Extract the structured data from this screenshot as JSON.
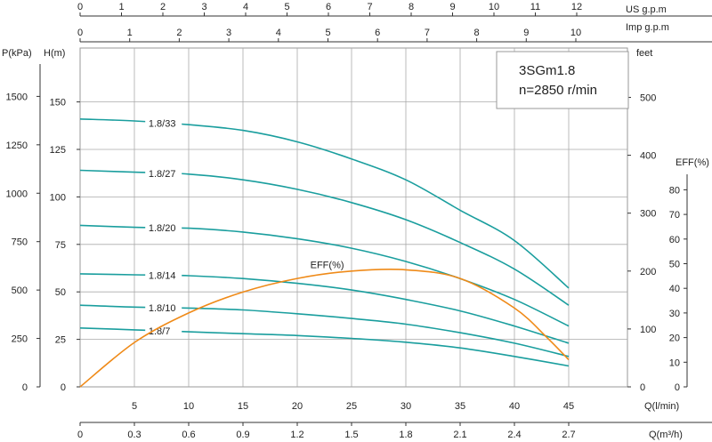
{
  "chart_data": {
    "type": "line",
    "title": "3SGm1.8",
    "subtitle": "n=2850 r/min",
    "axes": {
      "q_lmin": {
        "label": "Q(l/min)",
        "ticks": [
          5,
          10,
          15,
          20,
          25,
          30,
          35,
          40,
          45
        ],
        "range": [
          0,
          50
        ]
      },
      "q_m3h": {
        "label": "Q(m³/h)",
        "ticks": [
          "0",
          "0.3",
          "0.6",
          "0.9",
          "1.2",
          "1.5",
          "1.8",
          "2.1",
          "2.4",
          "2.7"
        ],
        "range": [
          0,
          3
        ]
      },
      "us_gpm": {
        "label": "US  g.p.m",
        "ticks": [
          0,
          1,
          2,
          3,
          4,
          5,
          6,
          7,
          8,
          9,
          10,
          11,
          12
        ]
      },
      "imp_gpm": {
        "label": "Imp  g.p.m",
        "ticks": [
          0,
          1,
          2,
          3,
          4,
          5,
          6,
          7,
          8,
          9,
          10
        ]
      },
      "h_m": {
        "label": "H(m)",
        "ticks": [
          0,
          25,
          50,
          75,
          100,
          125,
          150
        ],
        "range": [
          0,
          172
        ]
      },
      "p_kpa": {
        "label": "P(kPa)",
        "ticks": [
          0,
          250,
          500,
          750,
          1000,
          1250,
          1500
        ]
      },
      "feet": {
        "label": "feet",
        "ticks": [
          0,
          100,
          200,
          300,
          400,
          500
        ]
      },
      "eff": {
        "label": "EFF(%)",
        "ticks": [
          0,
          10,
          20,
          30,
          40,
          50,
          60,
          70,
          80
        ]
      }
    },
    "series": [
      {
        "name": "1.8/33",
        "x": [
          0,
          5,
          10,
          15,
          20,
          25,
          30,
          35,
          40,
          45
        ],
        "y": [
          141,
          140,
          138,
          135,
          129,
          120,
          109,
          93,
          77,
          52
        ]
      },
      {
        "name": "1.8/27",
        "x": [
          0,
          5,
          10,
          15,
          20,
          25,
          30,
          35,
          40,
          45
        ],
        "y": [
          114,
          113,
          112,
          109,
          104,
          97,
          88,
          76,
          62,
          43
        ]
      },
      {
        "name": "1.8/20",
        "x": [
          0,
          5,
          10,
          15,
          20,
          25,
          30,
          35,
          40,
          45
        ],
        "y": [
          85,
          84,
          83.5,
          81.5,
          78,
          73,
          66,
          57,
          46,
          32
        ]
      },
      {
        "name": "1.8/14",
        "x": [
          0,
          5,
          10,
          15,
          20,
          25,
          30,
          35,
          40,
          45
        ],
        "y": [
          59.5,
          59,
          58.5,
          57,
          54.5,
          51,
          46,
          40,
          32,
          23
        ]
      },
      {
        "name": "1.8/10",
        "x": [
          0,
          5,
          10,
          15,
          20,
          25,
          30,
          35,
          40,
          45
        ],
        "y": [
          43,
          42,
          41.5,
          40.5,
          38.5,
          36,
          33,
          28.5,
          23,
          16
        ]
      },
      {
        "name": "1.8/7",
        "x": [
          0,
          5,
          10,
          15,
          20,
          25,
          30,
          35,
          40,
          45
        ],
        "y": [
          31,
          30,
          29,
          28,
          27,
          25.5,
          23.5,
          20.5,
          16,
          11
        ]
      },
      {
        "name": "EFF(%)",
        "axis": "eff",
        "x": [
          0,
          5,
          10,
          15,
          20,
          25,
          30,
          35,
          40,
          43,
          45
        ],
        "y": [
          0,
          18,
          30,
          38.5,
          44,
          47,
          47.5,
          44,
          32,
          20,
          11
        ]
      }
    ],
    "grid": true,
    "colors": {
      "head_curves": "#1a9e9e",
      "eff_curve": "#ef8a18",
      "grid": "#aaaaaa"
    }
  }
}
